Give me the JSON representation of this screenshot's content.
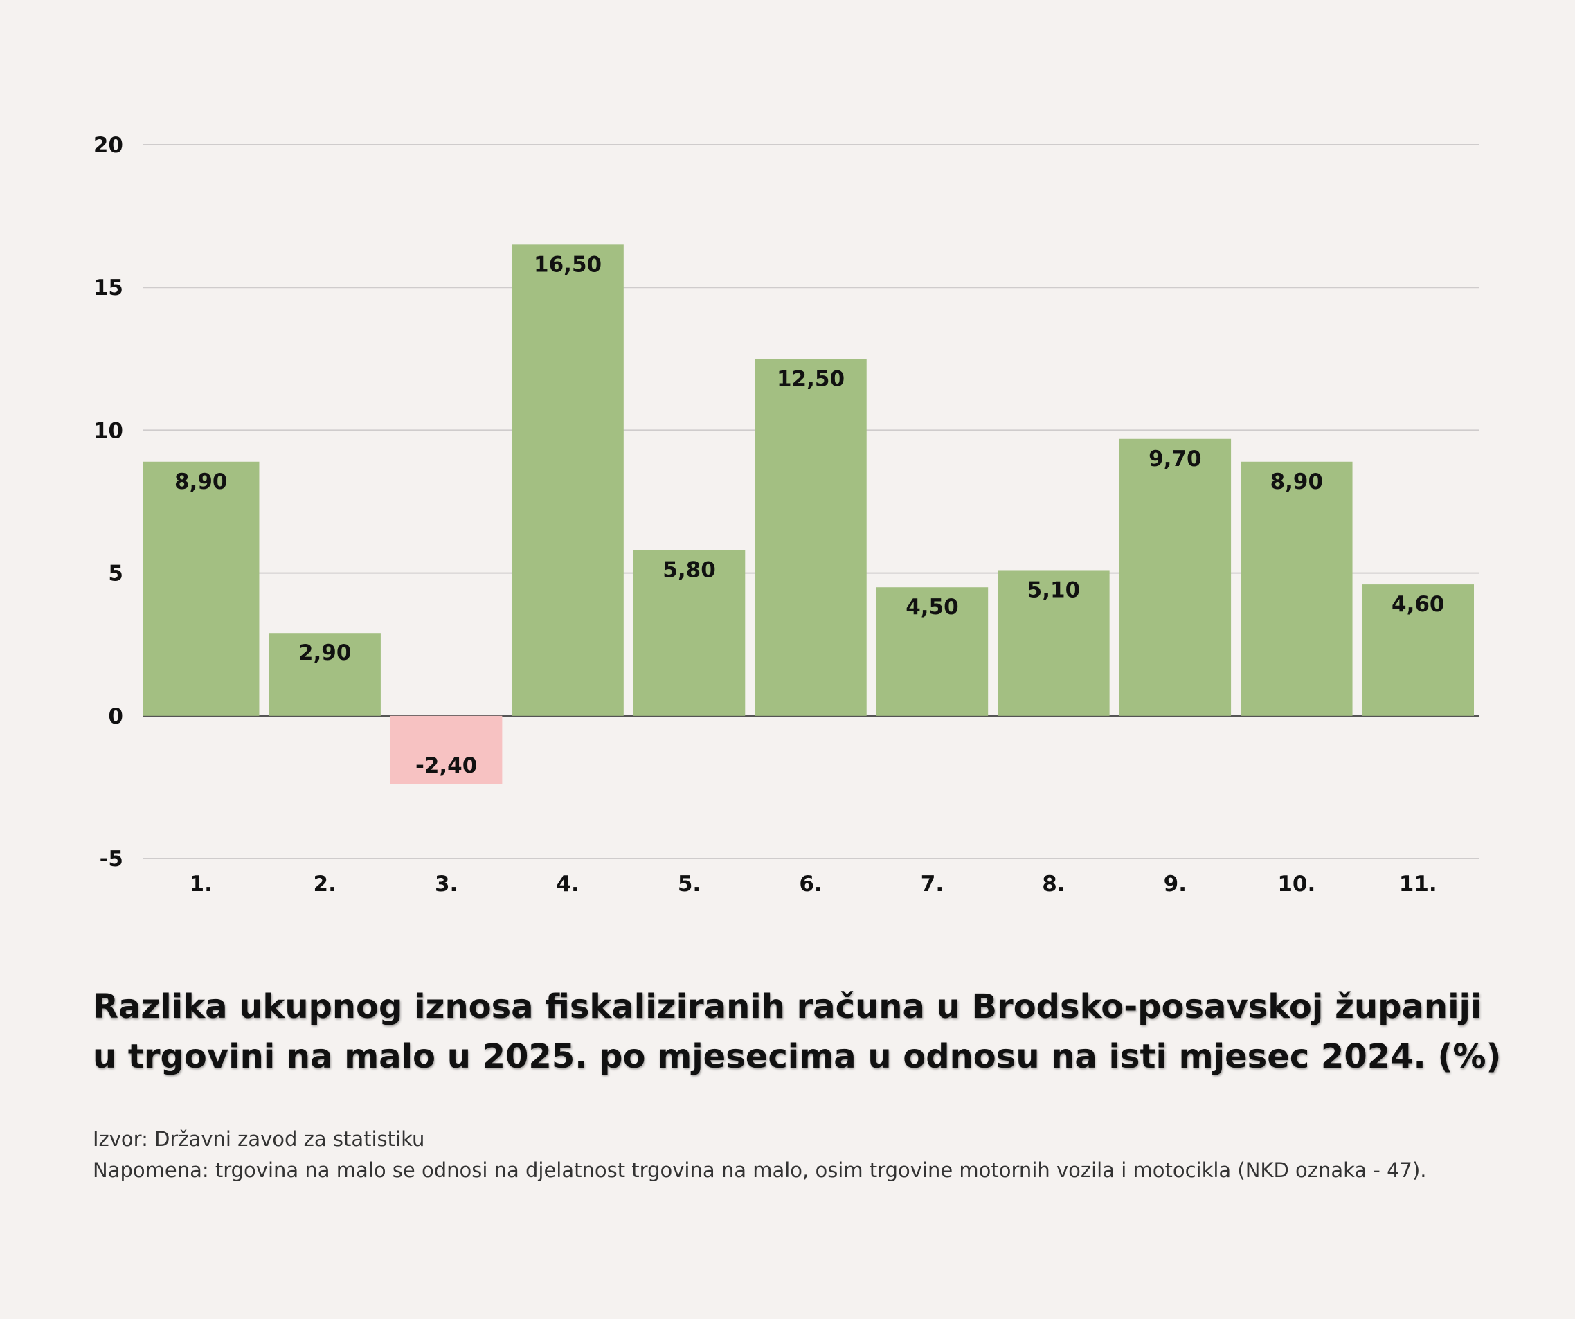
{
  "chart_data": {
    "type": "bar",
    "categories": [
      "1.",
      "2.",
      "3.",
      "4.",
      "5.",
      "6.",
      "7.",
      "8.",
      "9.",
      "10.",
      "11."
    ],
    "values": [
      8.9,
      2.9,
      -2.4,
      16.5,
      5.8,
      12.5,
      4.5,
      5.1,
      9.7,
      8.9,
      4.6
    ],
    "value_labels": [
      "8,90",
      "2,90",
      "-2,40",
      "16,50",
      "5,80",
      "12,50",
      "4,50",
      "5,10",
      "9,70",
      "8,90",
      "4,60"
    ],
    "yticks": [
      20,
      15,
      10,
      5,
      0,
      -5
    ],
    "ylim": [
      -5,
      20
    ],
    "grid": true,
    "legend": "none",
    "xlabel": "",
    "ylabel": "",
    "colors": {
      "positive": "#a3bf82",
      "negative": "#f7c2c2",
      "grid": "#cfcccc",
      "zero_line": "#555555"
    }
  },
  "title": "Razlika ukupnog iznosa fiskaliziranih računa u Brodsko-posavskoj županiji u trgovini na malo u 2025. po mjesecima u odnosu na isti mjesec 2024. (%)",
  "source": "Izvor: Državni zavod za statistiku",
  "note": "Napomena: trgovina na malo se odnosi na djelatnost trgovina na malo, osim trgovine motornih vozila i motocikla (NKD oznaka - 47)."
}
